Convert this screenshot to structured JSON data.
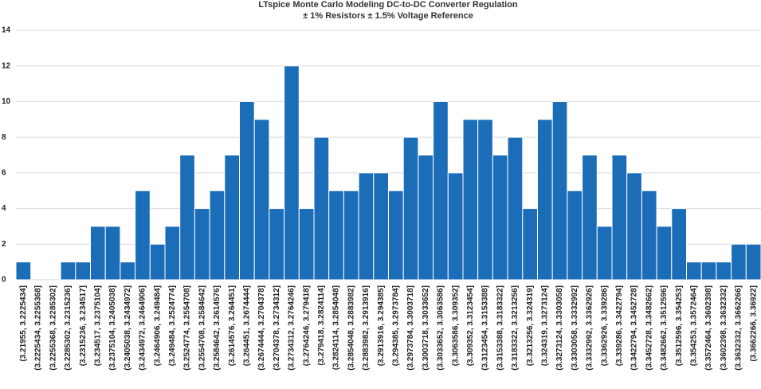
{
  "chart_data": {
    "type": "bar",
    "title": "LTspice Monte Carlo Modeling DC-to-DC Converter Regulation",
    "subtitle": "± 1% Resistors ± 1.5% Voltage Reference",
    "categories": [
      "(3.21955, 3.2225434]",
      "(3.2225434, 3.2255368]",
      "(3.2255368, 3.2285302]",
      "(3.2285302, 3.2315236]",
      "(3.2315236, 3.234517]",
      "(3.234517, 3.2375104]",
      "(3.2375104, 3.2405038]",
      "(3.2405038, 3.2434972]",
      "(3.2434972, 3.2464906]",
      "(3.2464906, 3.249484]",
      "(3.249484, 3.2524774]",
      "(3.2524774, 3.2554708]",
      "(3.2554708, 3.2584642]",
      "(3.2584642, 3.2614576]",
      "(3.2614576, 3.264451]",
      "(3.264451, 3.2674444]",
      "(3.2674444, 3.2704378]",
      "(3.2704378, 3.2734312]",
      "(3.2734312, 3.2764246]",
      "(3.2764246, 3.279418]",
      "(3.279418, 3.2824114]",
      "(3.2824114, 3.2854048]",
      "(3.2854048, 3.2883982]",
      "(3.2883982, 3.2913916]",
      "(3.2913916, 3.294385]",
      "(3.294385, 3.2973784]",
      "(3.2973784, 3.3003718]",
      "(3.3003718, 3.3033652]",
      "(3.3033652, 3.3063586]",
      "(3.3063586, 3.309352]",
      "(3.309352, 3.3123454]",
      "(3.3123454, 3.3153388]",
      "(3.3153388, 3.3183322]",
      "(3.3183322, 3.3213256]",
      "(3.3213256, 3.324319]",
      "(3.324319, 3.3273124]",
      "(3.3273124, 3.3303058]",
      "(3.3303058, 3.3332992]",
      "(3.3332992, 3.3362926]",
      "(3.3362926, 3.339286]",
      "(3.339286, 3.3422794]",
      "(3.3422794, 3.3452728]",
      "(3.3452728, 3.3482662]",
      "(3.3482662, 3.3512596]",
      "(3.3512596, 3.354253]",
      "(3.354253, 3.3572464]",
      "(3.3572464, 3.3602398]",
      "(3.3602398, 3.3632332]",
      "(3.3632332, 3.3662266]",
      "(3.3662266, 3.36922]"
    ],
    "values": [
      1,
      0,
      0,
      1,
      1,
      3,
      3,
      1,
      5,
      2,
      3,
      7,
      4,
      5,
      7,
      10,
      9,
      4,
      12,
      4,
      8,
      5,
      5,
      6,
      6,
      5,
      8,
      7,
      10,
      6,
      9,
      9,
      7,
      8,
      4,
      9,
      10,
      5,
      7,
      3,
      7,
      6,
      5,
      3,
      4,
      1,
      1,
      1,
      2,
      2
    ],
    "color": "#1b6db8",
    "ylim": [
      0,
      14
    ],
    "yticks": [
      0,
      2,
      4,
      6,
      8,
      10,
      12,
      14
    ],
    "grid": true
  }
}
